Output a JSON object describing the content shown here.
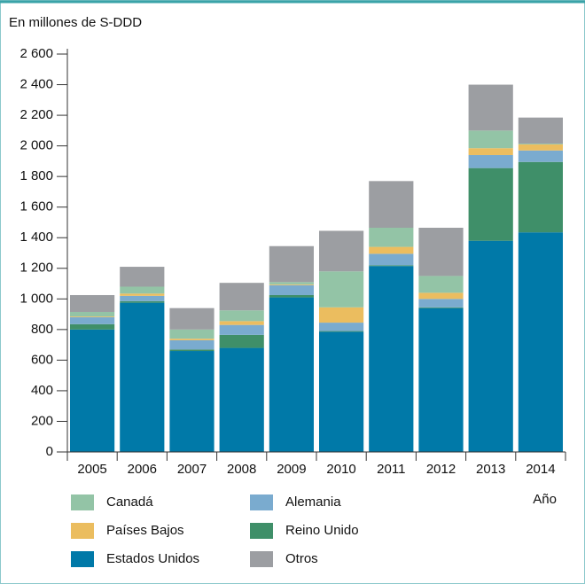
{
  "chart_data": {
    "type": "stacked_bar",
    "y_label": "En millones de S-DDD",
    "x_label": "Año",
    "categories": [
      "2005",
      "2006",
      "2007",
      "2008",
      "2009",
      "2010",
      "2011",
      "2012",
      "2013",
      "2014"
    ],
    "series": [
      {
        "name": "Estados Unidos",
        "color": "#0079a8",
        "values": [
          800,
          975,
          660,
          680,
          1010,
          785,
          1215,
          940,
          1380,
          1435
        ]
      },
      {
        "name": "Reino Unido",
        "color": "#3f8f69",
        "values": [
          35,
          10,
          10,
          85,
          15,
          5,
          5,
          5,
          475,
          460
        ]
      },
      {
        "name": "Alemania",
        "color": "#7aabcf",
        "values": [
          45,
          35,
          60,
          65,
          65,
          55,
          75,
          55,
          85,
          75
        ]
      },
      {
        "name": "Países Bajos",
        "color": "#ebbd5f",
        "values": [
          5,
          15,
          10,
          25,
          5,
          100,
          45,
          40,
          45,
          40
        ]
      },
      {
        "name": "Canadá",
        "color": "#93c4a6",
        "values": [
          30,
          45,
          60,
          70,
          15,
          235,
          125,
          110,
          115,
          5
        ]
      },
      {
        "name": "Otros",
        "color": "#9c9ea2",
        "values": [
          110,
          130,
          140,
          180,
          235,
          265,
          305,
          315,
          300,
          170
        ]
      }
    ],
    "ylim": [
      0,
      2600
    ],
    "yticks": [
      0,
      200,
      400,
      600,
      800,
      {
        "value": 1000,
        "label": "1 000"
      },
      {
        "value": 1200,
        "label": "1 200"
      },
      {
        "value": 1400,
        "label": "1 400"
      },
      {
        "value": 1600,
        "label": "1 600"
      },
      {
        "value": 1800,
        "label": "1 800"
      },
      {
        "value": 2000,
        "label": "2 000"
      },
      {
        "value": 2200,
        "label": "2 200"
      },
      {
        "value": 2400,
        "label": "2 400"
      },
      {
        "value": 2600,
        "label": "2 600"
      }
    ]
  }
}
